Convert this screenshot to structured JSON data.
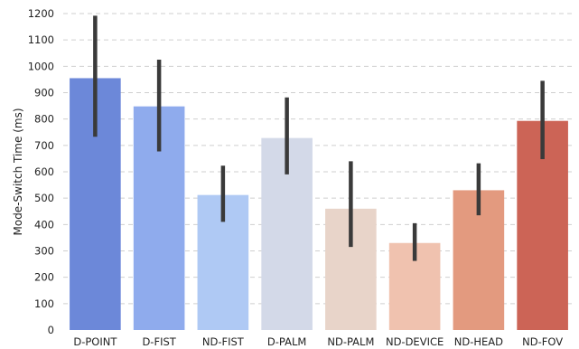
{
  "chart_data": {
    "type": "bar",
    "title": "",
    "xlabel": "",
    "ylabel": "Mode-Switch Time (ms)",
    "ylim": [
      0,
      1200
    ],
    "yticks": [
      0,
      100,
      200,
      300,
      400,
      500,
      600,
      700,
      800,
      900,
      1000,
      1100,
      1200
    ],
    "grid": "horizontal dashed",
    "categories": [
      "D-POINT",
      "D-FIST",
      "ND-FIST",
      "D-PALM",
      "ND-PALM",
      "ND-DEVICE",
      "ND-HEAD",
      "ND-FOV"
    ],
    "values": [
      955,
      848,
      512,
      728,
      460,
      330,
      530,
      793
    ],
    "error_low": [
      733,
      677,
      410,
      590,
      315,
      262,
      435,
      648
    ],
    "error_high": [
      1192,
      1025,
      623,
      882,
      640,
      405,
      632,
      945
    ],
    "colors": [
      "#6c88d9",
      "#8fabed",
      "#afc9f4",
      "#d3d9e8",
      "#e8d4c9",
      "#f0c2af",
      "#e39a7f",
      "#cc6456"
    ],
    "error_bar_color": "#3a3a3a"
  }
}
